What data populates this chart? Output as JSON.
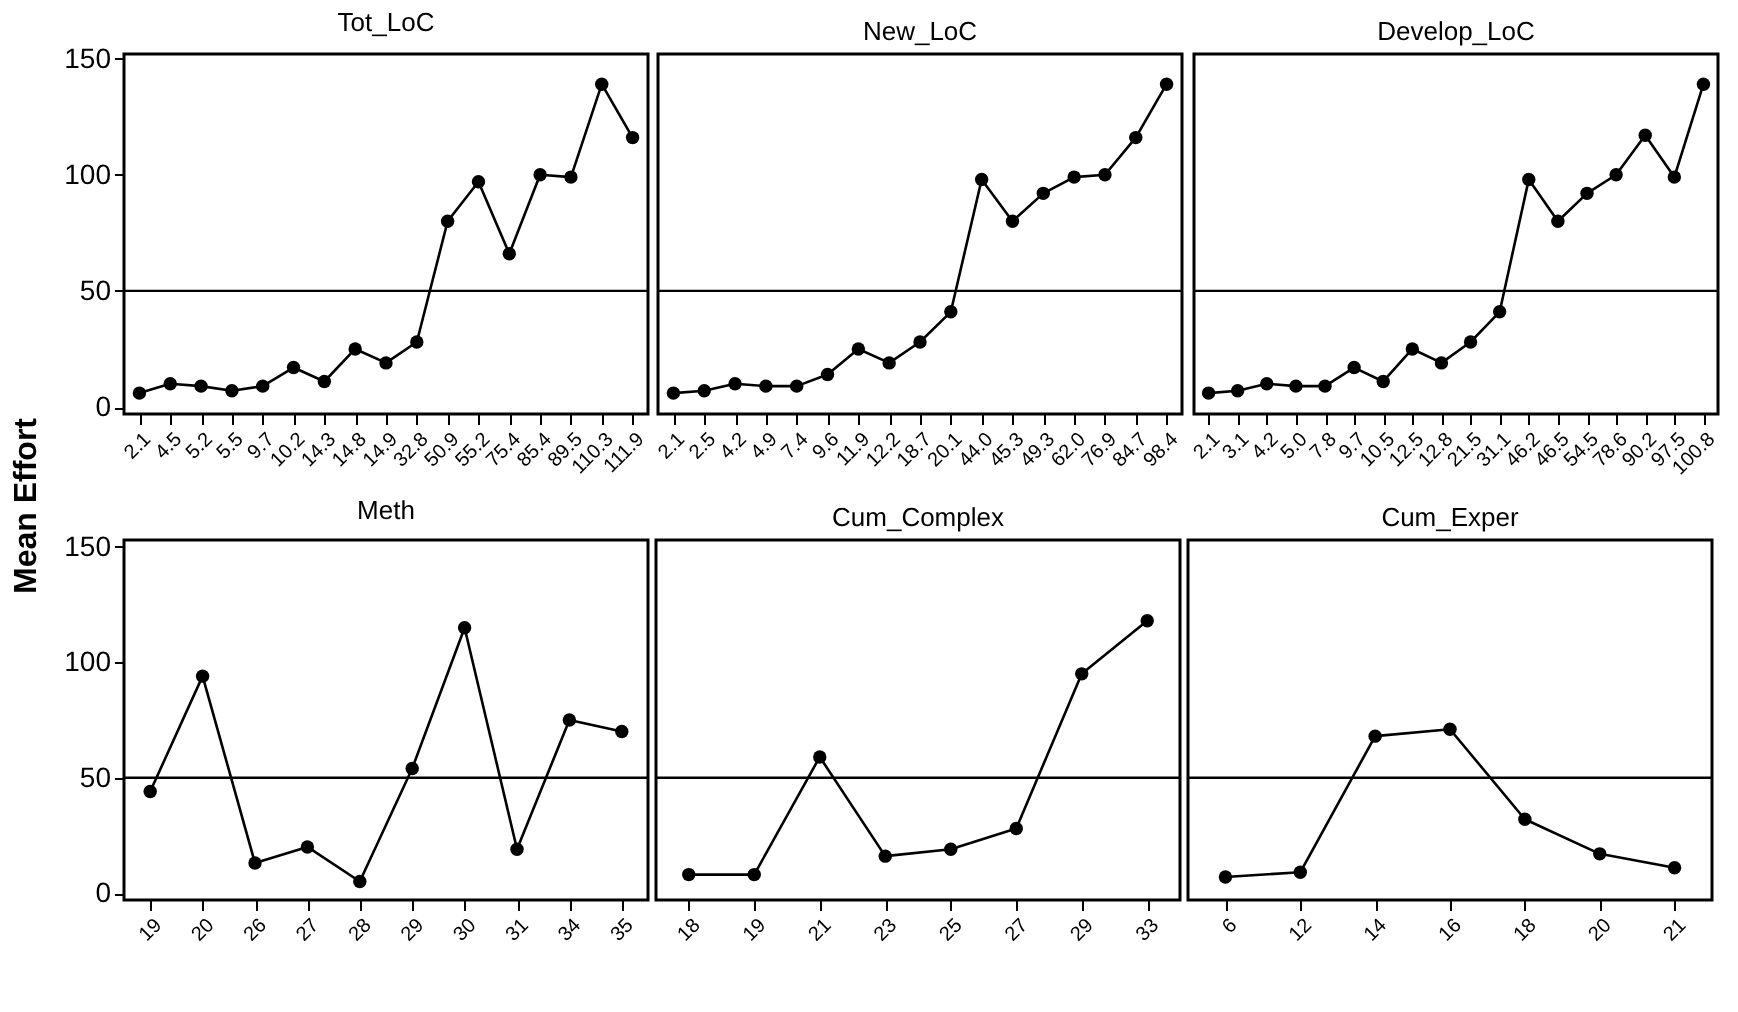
{
  "chart_data": [
    {
      "type": "line",
      "title": "Tot_LoC",
      "ylabel": "Mean Effort",
      "categories": [
        "2.1",
        "4.5",
        "5.2",
        "5.5",
        "9.7",
        "10.2",
        "14.3",
        "14.8",
        "14.9",
        "32.8",
        "50.9",
        "55.2",
        "75.4",
        "85.4",
        "89.5",
        "110.3",
        "111.9"
      ],
      "values": [
        6,
        10,
        9,
        7,
        9,
        17,
        11,
        25,
        19,
        28,
        80,
        97,
        66,
        100,
        99,
        139,
        116
      ],
      "color": "#000000",
      "ylim": [
        -3,
        152
      ],
      "yticks": [
        0,
        50,
        100,
        150
      ],
      "marker": "circle",
      "line_style": "solid",
      "ref_lines": [
        {
          "axis": "y",
          "value": 50,
          "color": "#000000"
        }
      ]
    },
    {
      "type": "line",
      "title": "New_LoC",
      "categories": [
        "2.1",
        "2.5",
        "4.2",
        "4.9",
        "7.4",
        "9.6",
        "11.9",
        "12.2",
        "18.7",
        "20.1",
        "44.0",
        "45.3",
        "49.3",
        "62.0",
        "76.9",
        "84.7",
        "98.4"
      ],
      "values": [
        6,
        7,
        10,
        9,
        9,
        14,
        25,
        19,
        28,
        41,
        98,
        80,
        92,
        99,
        100,
        116,
        139
      ],
      "color": "#000000",
      "ylim": [
        -3,
        152
      ],
      "yticks": [
        0,
        50,
        100,
        150
      ],
      "tick_labels": "x",
      "marker": "circle",
      "line_style": "solid",
      "ref_lines": [
        {
          "axis": "y",
          "value": 50,
          "color": "#000000"
        }
      ]
    },
    {
      "type": "line",
      "title": "Develop_LoC",
      "categories": [
        "2.1",
        "3.1",
        "4.2",
        "5.0",
        "7.8",
        "9.7",
        "10.5",
        "12.5",
        "12.8",
        "21.5",
        "31.1",
        "46.2",
        "46.5",
        "54.5",
        "78.6",
        "90.2",
        "97.5",
        "100.8"
      ],
      "values": [
        6,
        7,
        10,
        9,
        9,
        17,
        11,
        25,
        19,
        28,
        41,
        98,
        80,
        92,
        100,
        117,
        99,
        139
      ],
      "color": "#000000",
      "ylim": [
        -3,
        152
      ],
      "yticks": [
        0,
        50,
        100,
        150
      ],
      "tick_labels": "x",
      "marker": "circle",
      "line_style": "solid",
      "ref_lines": [
        {
          "axis": "y",
          "value": 50,
          "color": "#000000"
        }
      ]
    },
    {
      "type": "line",
      "title": "Meth",
      "categories": [
        "19",
        "20",
        "26",
        "27",
        "28",
        "29",
        "30",
        "31",
        "34",
        "35"
      ],
      "values": [
        44,
        94,
        13,
        20,
        5,
        54,
        115,
        19,
        75,
        70
      ],
      "color": "#000000",
      "ylim": [
        -3,
        153
      ],
      "yticks": [
        0,
        50,
        100,
        150
      ],
      "marker": "circle",
      "line_style": "solid",
      "ref_lines": [
        {
          "axis": "y",
          "value": 50,
          "color": "#000000"
        }
      ]
    },
    {
      "type": "line",
      "title": "Cum_Complex",
      "categories": [
        "18",
        "19",
        "21",
        "23",
        "25",
        "27",
        "29",
        "33"
      ],
      "values": [
        8,
        8,
        59,
        16,
        19,
        28,
        95,
        118
      ],
      "color": "#000000",
      "ylim": [
        -3,
        153
      ],
      "yticks": [
        0,
        50,
        100,
        150
      ],
      "tick_labels": "x",
      "marker": "circle",
      "line_style": "solid",
      "ref_lines": [
        {
          "axis": "y",
          "value": 50,
          "color": "#000000"
        }
      ]
    },
    {
      "type": "line",
      "title": "Cum_Exper",
      "categories": [
        "6",
        "12",
        "14",
        "16",
        "18",
        "20",
        "21"
      ],
      "values": [
        7,
        9,
        68,
        71,
        32,
        17,
        11
      ],
      "color": "#000000",
      "ylim": [
        -3,
        153
      ],
      "yticks": [
        0,
        50,
        100,
        150
      ],
      "tick_labels": "x",
      "marker": "circle",
      "line_style": "solid",
      "ref_lines": [
        {
          "axis": "y",
          "value": 50,
          "color": "#000000"
        }
      ]
    }
  ]
}
